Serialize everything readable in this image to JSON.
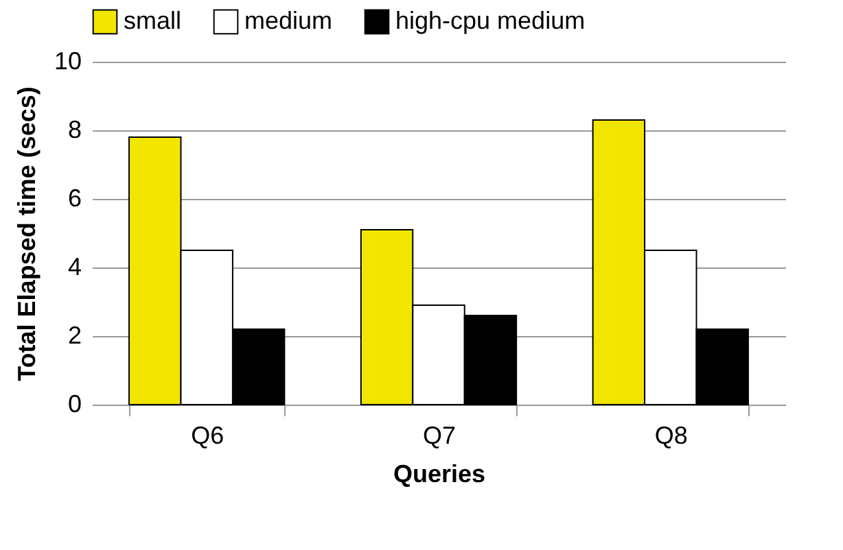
{
  "chart_data": {
    "type": "bar",
    "xlabel": "Queries",
    "ylabel": "Total Elapsed time (secs)",
    "categories": [
      "Q6",
      "Q7",
      "Q8"
    ],
    "series": [
      {
        "name": "small",
        "color": "#f2e600",
        "values": [
          7.8,
          5.1,
          8.3
        ]
      },
      {
        "name": "medium",
        "color": "#ffffff",
        "values": [
          4.5,
          2.9,
          4.5
        ]
      },
      {
        "name": "high-cpu medium",
        "color": "#000000",
        "values": [
          2.2,
          2.6,
          2.2
        ]
      }
    ],
    "ylim": [
      0,
      10
    ],
    "yticks": [
      0,
      2,
      4,
      6,
      8,
      10
    ],
    "grid": "y",
    "legend": "top"
  }
}
